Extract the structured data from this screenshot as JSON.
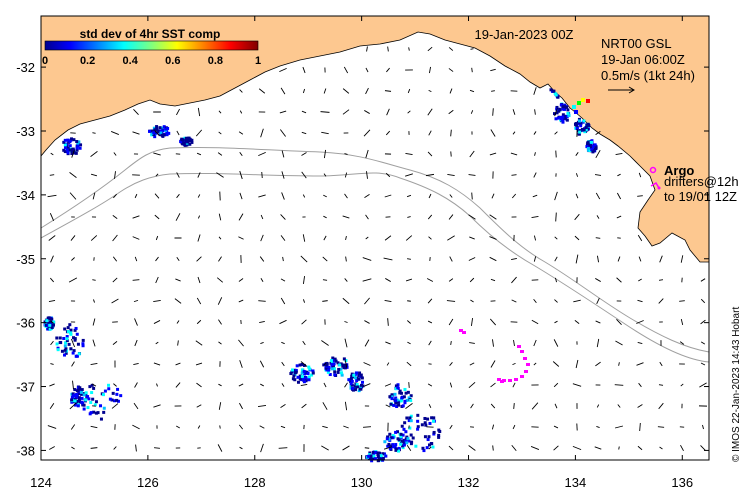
{
  "map": {
    "title_date": "19-Jan-2023 00Z",
    "currents_header": "NRT00 GSL",
    "currents_date": "19-Jan 06:00Z",
    "currents_scale": "0.5m/s (1kt 24h)",
    "argo_label": "Argo",
    "drifters_label_line1": "drifters@12h",
    "drifters_label_line2": "to 19/01 12Z",
    "credit": "© IMOS 22-Jan-2023 14:43 Hobart",
    "colorbar": {
      "title": "std dev of 4hr SST comp",
      "ticks": [
        "0",
        "0.2",
        "0.4",
        "0.6",
        "0.8",
        "1"
      ],
      "range": [
        0,
        1
      ]
    },
    "lon_ticks": [
      "124",
      "126",
      "128",
      "130",
      "132",
      "134",
      "136"
    ],
    "lat_ticks": [
      "-32",
      "-33",
      "-34",
      "-35",
      "-36",
      "-37",
      "-38"
    ],
    "lon_range": [
      124,
      136.5
    ],
    "lat_range": [
      -38.15,
      -31.2
    ],
    "colors": {
      "land": "#fdc890",
      "ocean": "#ffffff",
      "isobath": "#a0a0a0",
      "drifter": "#ff00ff",
      "vector": "#000000"
    }
  }
}
